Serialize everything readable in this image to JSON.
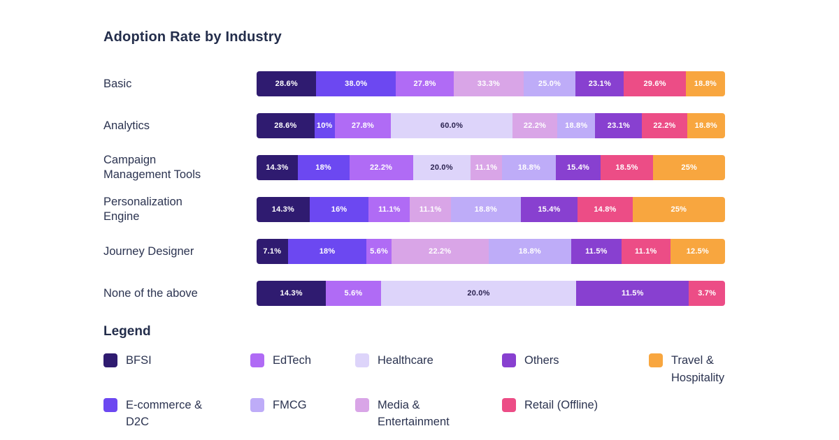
{
  "title": "Adoption Rate by Industry",
  "legend_title": "Legend",
  "colors": {
    "bfsi": "#2f1b70",
    "ecommerce": "#6c48f1",
    "edtech": "#b06bf5",
    "fmcg": "#beacf8",
    "healthcare": "#ddd4fa",
    "media": "#d9a5e7",
    "others": "#8840d0",
    "retail": "#ec4d86",
    "travel": "#f8a63f",
    "title_text": "#232d4b",
    "label_text": "#2b3350",
    "segment_label_light": "#ffffff",
    "segment_label_dark": "#2b2350",
    "background": "#ffffff"
  },
  "chart_data": {
    "type": "bar",
    "variant": "horizontal_stacked_normalized",
    "title": "Adoption Rate by Industry",
    "legend_position": "bottom",
    "grid": false,
    "categories": [
      "Basic",
      "Analytics",
      "Campaign Management Tools",
      "Personalization Engine",
      "Journey Designer",
      "None of the above"
    ],
    "industries": [
      {
        "id": "bfsi",
        "label": "BFSI"
      },
      {
        "id": "ecommerce",
        "label": "E-commerce & D2C"
      },
      {
        "id": "edtech",
        "label": "EdTech"
      },
      {
        "id": "fmcg",
        "label": "FMCG"
      },
      {
        "id": "healthcare",
        "label": "Healthcare"
      },
      {
        "id": "media",
        "label": "Media & Entertainment"
      },
      {
        "id": "others",
        "label": "Others"
      },
      {
        "id": "retail",
        "label": "Retail (Offline)"
      },
      {
        "id": "travel",
        "label": "Travel & Hospitality"
      }
    ],
    "legend_display_order": [
      "bfsi",
      "edtech",
      "healthcare",
      "others",
      "travel",
      "ecommerce",
      "fmcg",
      "media",
      "retail"
    ],
    "rows": [
      {
        "category": "Basic",
        "segments": [
          {
            "industry": "bfsi",
            "label": "28.6%",
            "value": 28.6
          },
          {
            "industry": "ecommerce",
            "label": "38.0%",
            "value": 38.0
          },
          {
            "industry": "edtech",
            "label": "27.8%",
            "value": 27.8
          },
          {
            "industry": "media",
            "label": "33.3%",
            "value": 33.3
          },
          {
            "industry": "fmcg",
            "label": "25.0%",
            "value": 25.0
          },
          {
            "industry": "others",
            "label": "23.1%",
            "value": 23.1
          },
          {
            "industry": "retail",
            "label": "29.6%",
            "value": 29.6
          },
          {
            "industry": "travel",
            "label": "18.8%",
            "value": 18.8
          }
        ]
      },
      {
        "category": "Analytics",
        "segments": [
          {
            "industry": "bfsi",
            "label": "28.6%",
            "value": 28.6
          },
          {
            "industry": "ecommerce",
            "label": "10%",
            "value": 10
          },
          {
            "industry": "edtech",
            "label": "27.8%",
            "value": 27.8
          },
          {
            "industry": "healthcare",
            "label": "60.0%",
            "value": 60.0
          },
          {
            "industry": "media",
            "label": "22.2%",
            "value": 22.2
          },
          {
            "industry": "fmcg",
            "label": "18.8%",
            "value": 18.8
          },
          {
            "industry": "others",
            "label": "23.1%",
            "value": 23.1
          },
          {
            "industry": "retail",
            "label": "22.2%",
            "value": 22.2
          },
          {
            "industry": "travel",
            "label": "18.8%",
            "value": 18.8
          }
        ]
      },
      {
        "category": "Campaign Management Tools",
        "segments": [
          {
            "industry": "bfsi",
            "label": "14.3%",
            "value": 14.3
          },
          {
            "industry": "ecommerce",
            "label": "18%",
            "value": 18
          },
          {
            "industry": "edtech",
            "label": "22.2%",
            "value": 22.2
          },
          {
            "industry": "healthcare",
            "label": "20.0%",
            "value": 20.0
          },
          {
            "industry": "media",
            "label": "11.1%",
            "value": 11.1
          },
          {
            "industry": "fmcg",
            "label": "18.8%",
            "value": 18.8
          },
          {
            "industry": "others",
            "label": "15.4%",
            "value": 15.4
          },
          {
            "industry": "retail",
            "label": "18.5%",
            "value": 18.5
          },
          {
            "industry": "travel",
            "label": "25%",
            "value": 25
          }
        ]
      },
      {
        "category": "Personalization Engine",
        "segments": [
          {
            "industry": "bfsi",
            "label": "14.3%",
            "value": 14.3
          },
          {
            "industry": "ecommerce",
            "label": "16%",
            "value": 16
          },
          {
            "industry": "edtech",
            "label": "11.1%",
            "value": 11.1
          },
          {
            "industry": "media",
            "label": "11.1%",
            "value": 11.1
          },
          {
            "industry": "fmcg",
            "label": "18.8%",
            "value": 18.8
          },
          {
            "industry": "others",
            "label": "15.4%",
            "value": 15.4
          },
          {
            "industry": "retail",
            "label": "14.8%",
            "value": 14.8
          },
          {
            "industry": "travel",
            "label": "25%",
            "value": 25
          }
        ]
      },
      {
        "category": "Journey Designer",
        "segments": [
          {
            "industry": "bfsi",
            "label": "7.1%",
            "value": 7.1
          },
          {
            "industry": "ecommerce",
            "label": "18%",
            "value": 18
          },
          {
            "industry": "edtech",
            "label": "5.6%",
            "value": 5.6
          },
          {
            "industry": "media",
            "label": "22.2%",
            "value": 22.2
          },
          {
            "industry": "fmcg",
            "label": "18.8%",
            "value": 18.8
          },
          {
            "industry": "others",
            "label": "11.5%",
            "value": 11.5
          },
          {
            "industry": "retail",
            "label": "11.1%",
            "value": 11.1
          },
          {
            "industry": "travel",
            "label": "12.5%",
            "value": 12.5
          }
        ]
      },
      {
        "category": "None of the above",
        "segments": [
          {
            "industry": "bfsi",
            "label": "14.3%",
            "value": 14.3,
            "weight": 7.1
          },
          {
            "industry": "edtech",
            "label": "5.6%",
            "value": 5.6
          },
          {
            "industry": "healthcare",
            "label": "20.0%",
            "value": 20.0
          },
          {
            "industry": "others",
            "label": "11.5%",
            "value": 11.5
          },
          {
            "industry": "retail",
            "label": "3.7%",
            "value": 3.7
          }
        ]
      }
    ]
  }
}
